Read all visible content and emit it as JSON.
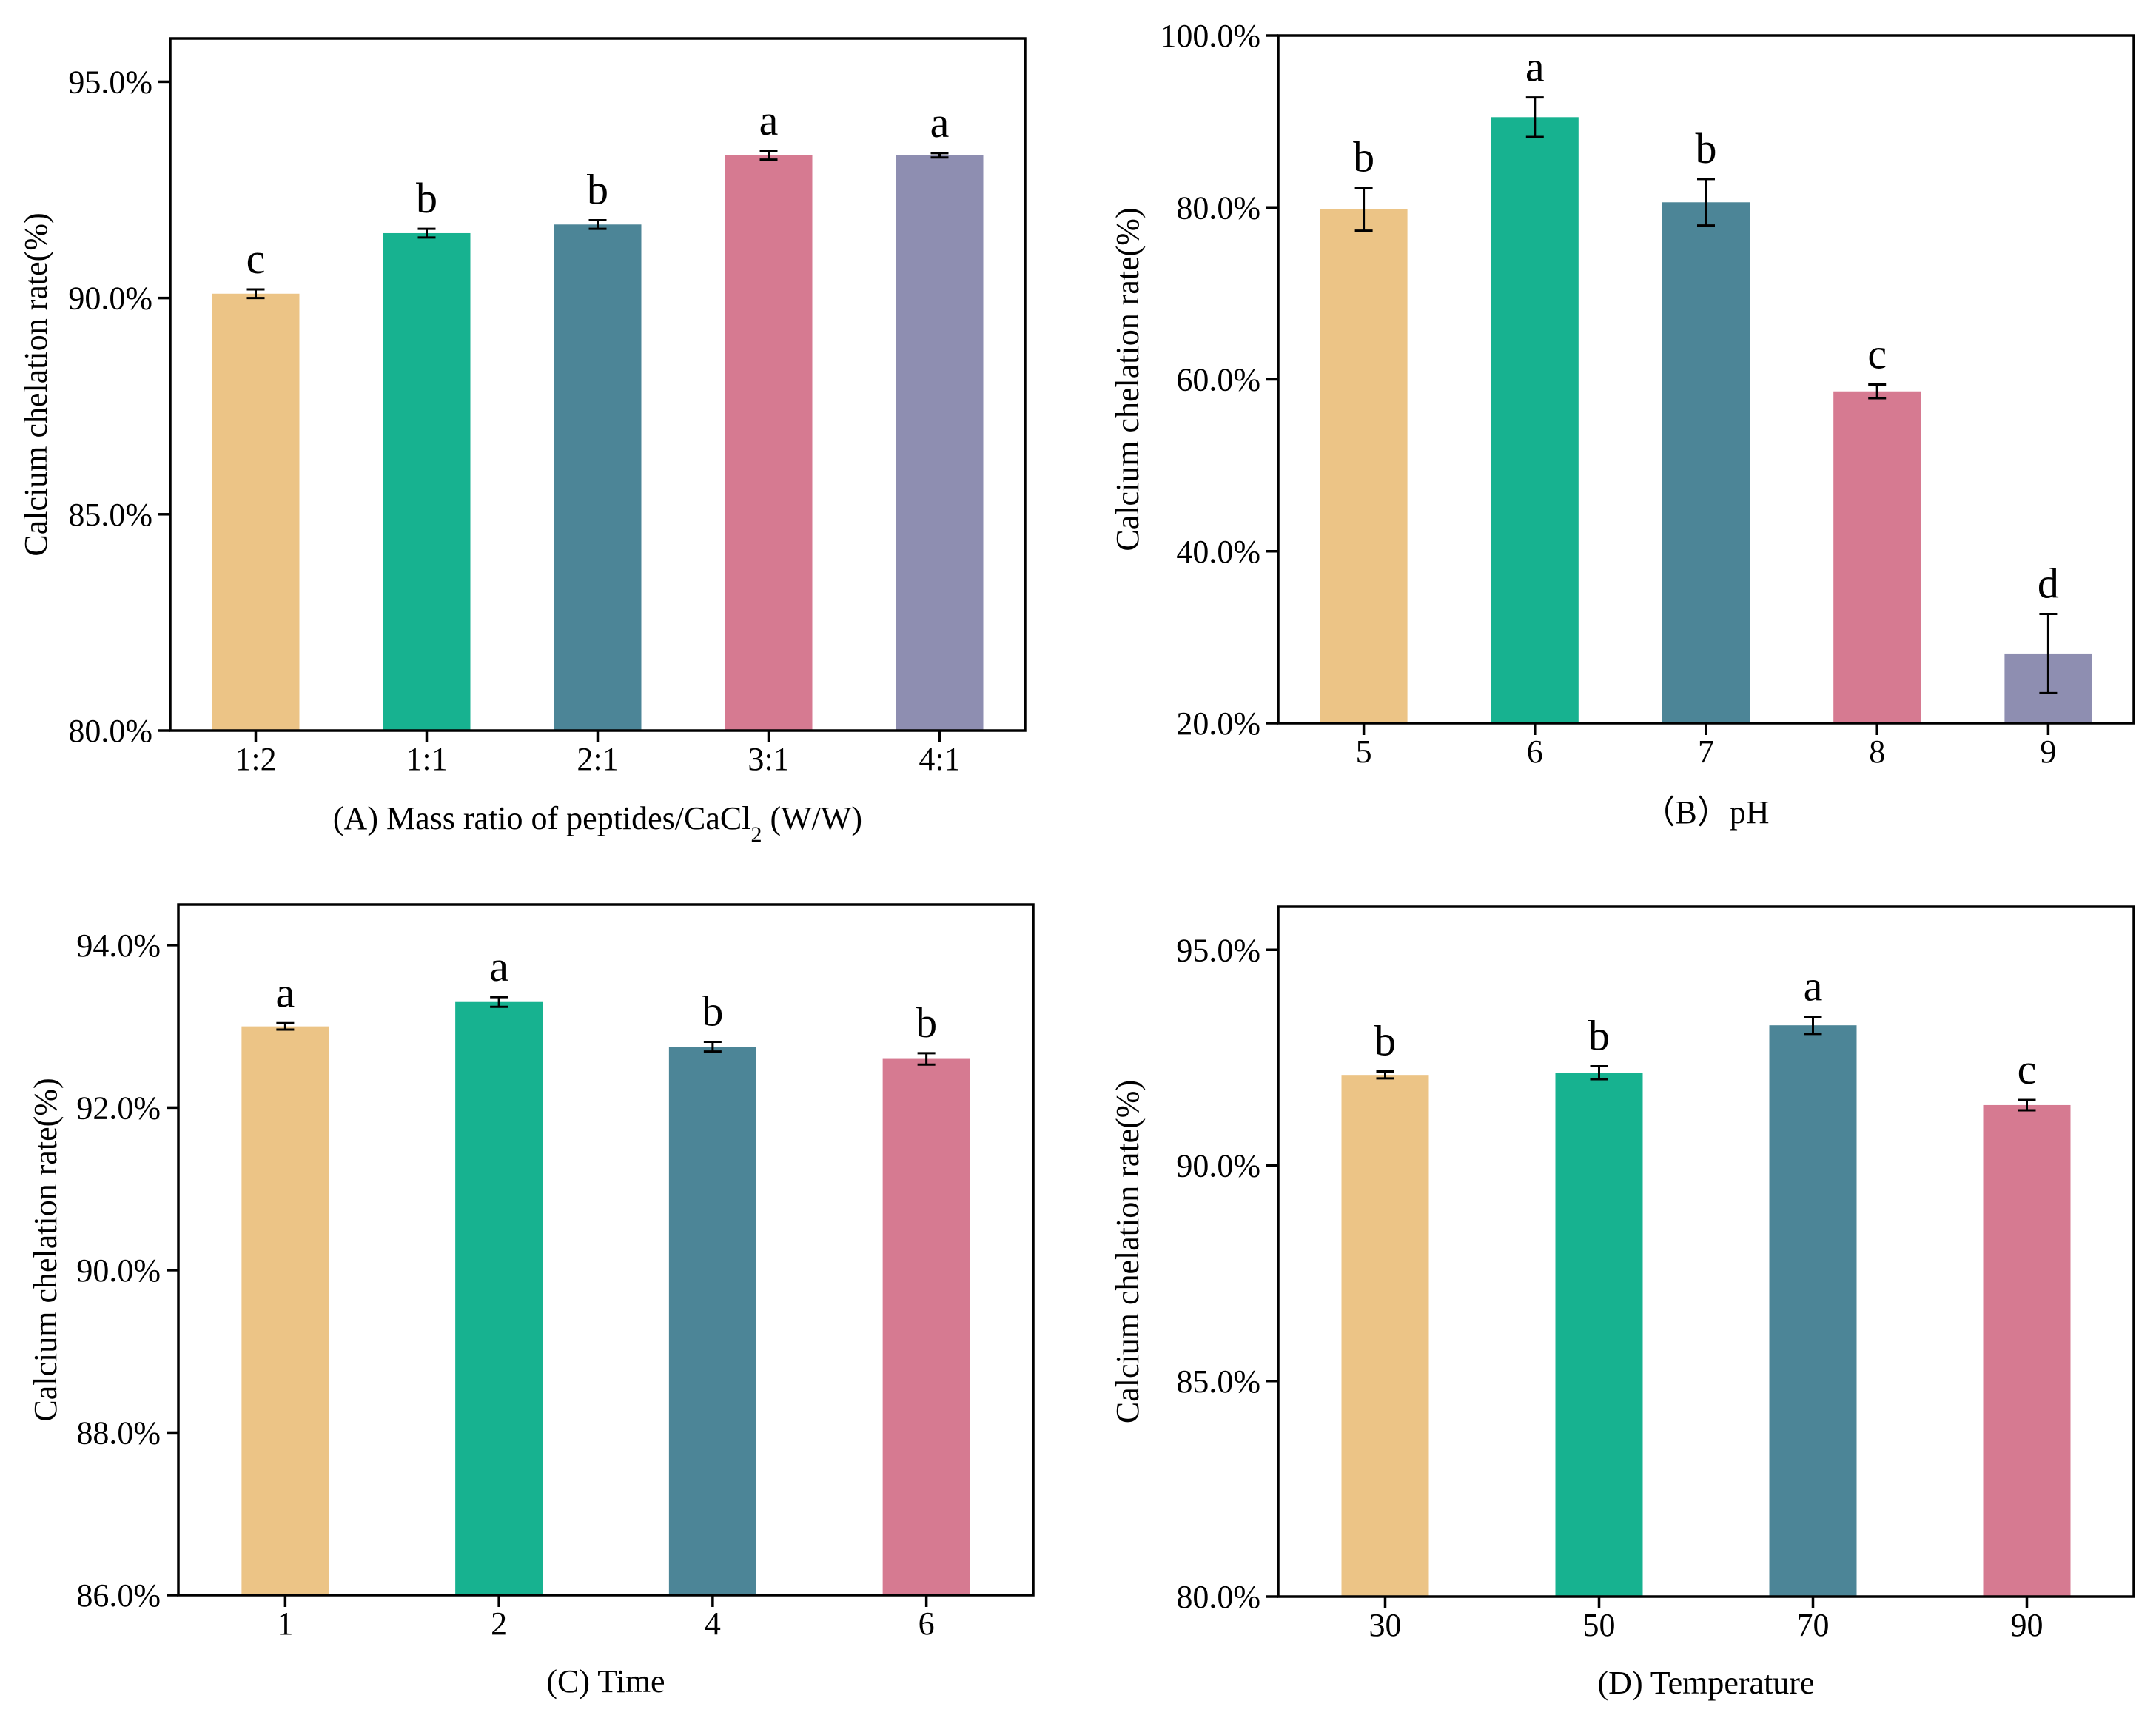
{
  "colors": [
    "#ECC486",
    "#17B290",
    "#4C8597",
    "#D67A91",
    "#8E8EB1"
  ],
  "chart_data": [
    {
      "type": "bar",
      "panel": "A",
      "categories": [
        "1:2",
        "1:1",
        "2:1",
        "3:1",
        "4:1"
      ],
      "values": [
        90.1,
        91.5,
        91.7,
        93.3,
        93.3
      ],
      "errors": [
        0.1,
        0.1,
        0.1,
        0.1,
        0.05
      ],
      "letters": [
        "c",
        "b",
        "b",
        "a",
        "a"
      ],
      "ylim": [
        80,
        96
      ],
      "yticks": [
        80,
        85,
        90,
        95
      ],
      "ytick_labels": [
        "80.0%",
        "85.0%",
        "90.0%",
        "95.0%"
      ],
      "ylabel": "Calcium chelation rate(%)",
      "xlabel_main": "(A) Mass ratio of peptides/CaCl",
      "xlabel_sub": "2",
      "xlabel_tail": " (W/W)"
    },
    {
      "type": "bar",
      "panel": "B",
      "categories": [
        "5",
        "6",
        "7",
        "8",
        "9"
      ],
      "values": [
        79.8,
        90.5,
        80.6,
        58.6,
        28.1
      ],
      "errors": [
        2.5,
        2.3,
        2.7,
        0.8,
        4.6
      ],
      "letters": [
        "b",
        "a",
        "b",
        "c",
        "d"
      ],
      "ylim": [
        20,
        100
      ],
      "yticks": [
        20,
        40,
        60,
        80,
        100
      ],
      "ytick_labels": [
        "20.0%",
        "40.0%",
        "60.0%",
        "80.0%",
        "100.0%"
      ],
      "ylabel": "Calcium chelation rate(%)",
      "xlabel_main": "（B）pH",
      "xlabel_sub": "",
      "xlabel_tail": ""
    },
    {
      "type": "bar",
      "panel": "C",
      "categories": [
        "1",
        "2",
        "4",
        "6"
      ],
      "values": [
        93.0,
        93.3,
        92.75,
        92.6
      ],
      "errors": [
        0.04,
        0.06,
        0.06,
        0.07
      ],
      "letters": [
        "a",
        "a",
        "b",
        "b"
      ],
      "ylim": [
        86,
        94.5
      ],
      "yticks": [
        86,
        88,
        90,
        92,
        94
      ],
      "ytick_labels": [
        "86.0%",
        "88.0%",
        "90.0%",
        "92.0%",
        "94.0%"
      ],
      "ylabel": "Calcium chelation rate(%)",
      "xlabel_main": "(C) Time",
      "xlabel_sub": "",
      "xlabel_tail": ""
    },
    {
      "type": "bar",
      "panel": "D",
      "categories": [
        "30",
        "50",
        "70",
        "90"
      ],
      "values": [
        92.1,
        92.15,
        93.25,
        91.4
      ],
      "errors": [
        0.08,
        0.15,
        0.2,
        0.12
      ],
      "letters": [
        "b",
        "b",
        "a",
        "c"
      ],
      "ylim": [
        80,
        96
      ],
      "yticks": [
        80,
        85,
        90,
        95
      ],
      "ytick_labels": [
        "80.0%",
        "85.0%",
        "90.0%",
        "95.0%"
      ],
      "ylabel": "Calcium chelation rate(%)",
      "xlabel_main": "(D) Temperature",
      "xlabel_sub": "",
      "xlabel_tail": ""
    }
  ]
}
